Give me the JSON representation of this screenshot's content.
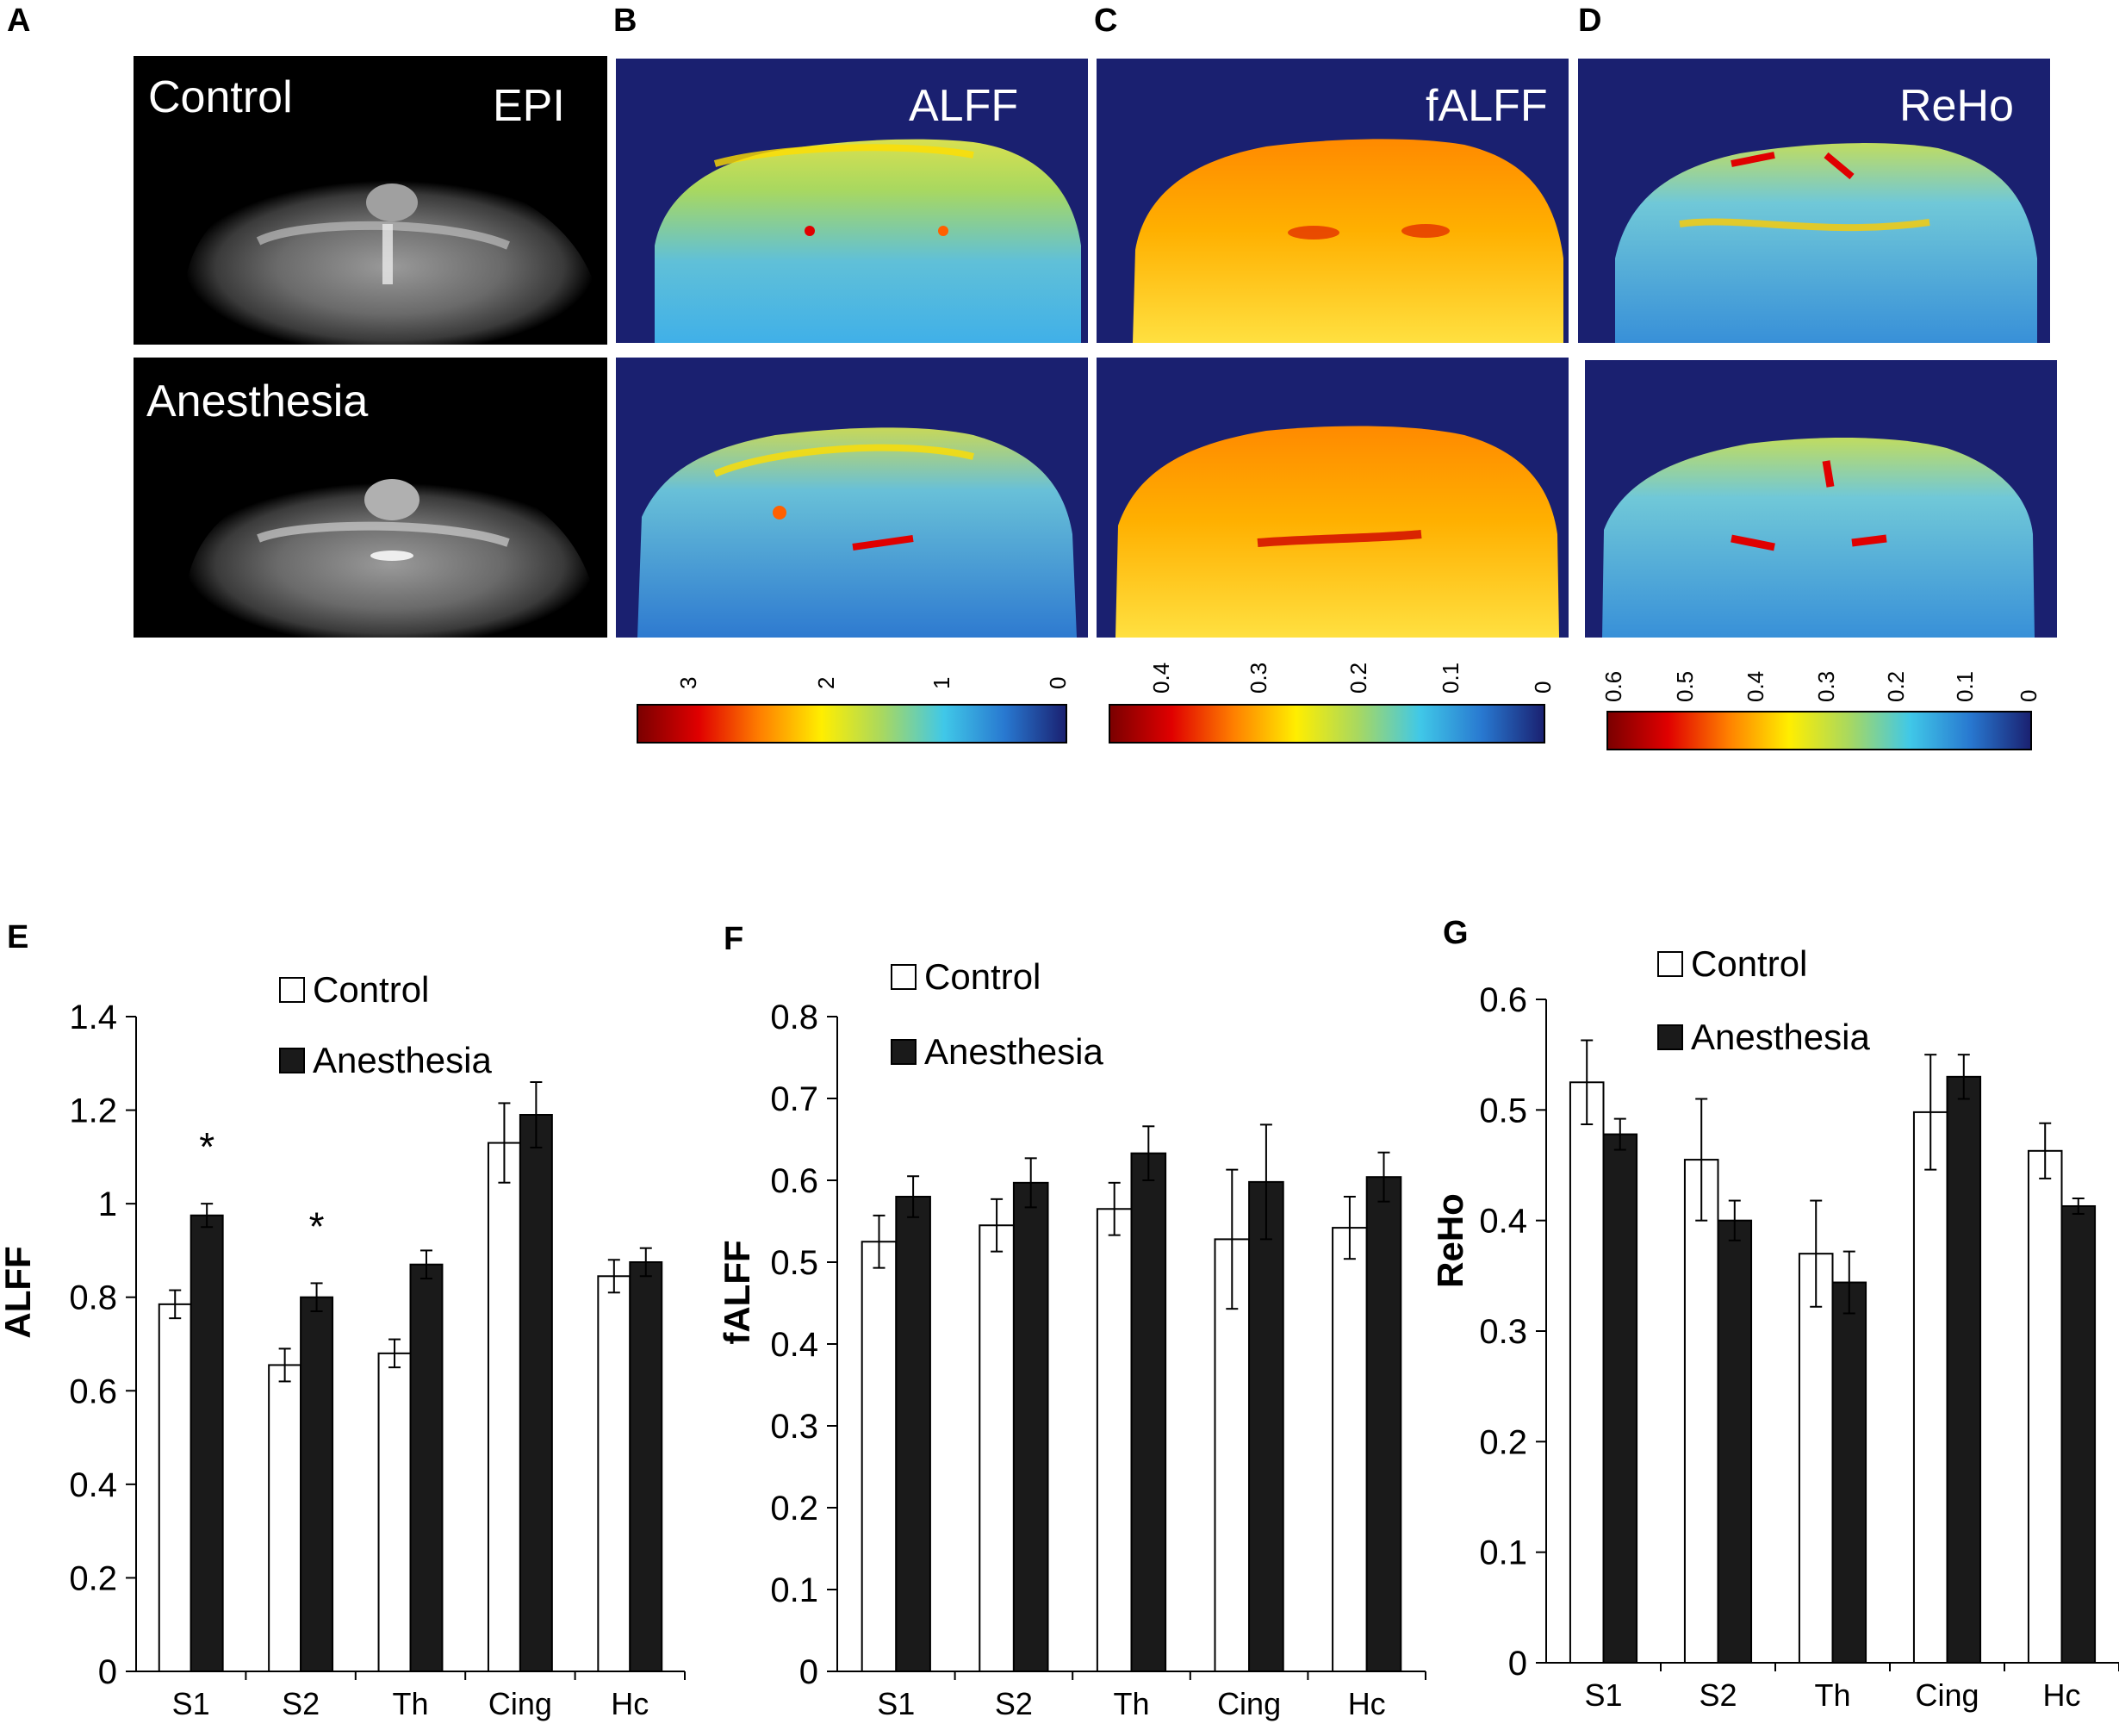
{
  "panel_labels": [
    "A",
    "B",
    "C",
    "D",
    "E",
    "F",
    "G"
  ],
  "images": {
    "row_labels": [
      "Control",
      "Anesthesia"
    ],
    "epi_label": "EPI",
    "map_labels": [
      "ALFF",
      "fALFF",
      "ReHo"
    ],
    "colors": {
      "background": "#1a2070",
      "colormap": [
        "#7a0000",
        "#e00000",
        "#ff8000",
        "#ffee00",
        "#a8d860",
        "#40c8e8",
        "#2878d0",
        "#1a2070"
      ]
    }
  },
  "colorbars": [
    {
      "name": "ALFF",
      "ticks": [
        "3",
        "2",
        "1",
        "0"
      ]
    },
    {
      "name": "fALFF",
      "ticks": [
        "0.4",
        "0.3",
        "0.2",
        "0.1",
        "0"
      ]
    },
    {
      "name": "ReHo",
      "ticks": [
        "0.6",
        "0.5",
        "0.4",
        "0.3",
        "0.2",
        "0.1",
        "0"
      ]
    }
  ],
  "chart_data": [
    {
      "type": "bar",
      "panel": "E",
      "ylabel": "ALFF",
      "xlabel": "",
      "categories": [
        "S1",
        "S2",
        "Th",
        "Cing",
        "Hc"
      ],
      "ylim": [
        0,
        1.4
      ],
      "yticks": [
        "0",
        "0.2",
        "0.4",
        "0.6",
        "0.8",
        "1",
        "1.2",
        "1.4"
      ],
      "series": [
        {
          "name": "Control",
          "color": "#ffffff",
          "values": [
            0.785,
            0.655,
            0.68,
            1.13,
            0.845
          ],
          "errors": [
            0.03,
            0.035,
            0.03,
            0.085,
            0.035
          ]
        },
        {
          "name": "Anesthesia",
          "color": "#1a1a1a",
          "values": [
            0.975,
            0.8,
            0.87,
            1.19,
            0.875
          ],
          "errors": [
            0.025,
            0.03,
            0.03,
            0.07,
            0.03
          ]
        }
      ],
      "annotations": [
        "*",
        "*"
      ],
      "legend": "top"
    },
    {
      "type": "bar",
      "panel": "F",
      "ylabel": "fALFF",
      "xlabel": "",
      "categories": [
        "S1",
        "S2",
        "Th",
        "Cing",
        "Hc"
      ],
      "ylim": [
        0,
        0.8
      ],
      "yticks": [
        "0",
        "0.1",
        "0.2",
        "0.3",
        "0.4",
        "0.5",
        "0.6",
        "0.7",
        "0.8"
      ],
      "series": [
        {
          "name": "Control",
          "color": "#ffffff",
          "values": [
            0.525,
            0.545,
            0.565,
            0.528,
            0.542
          ],
          "errors": [
            0.032,
            0.032,
            0.032,
            0.085,
            0.038
          ]
        },
        {
          "name": "Anesthesia",
          "color": "#1a1a1a",
          "values": [
            0.58,
            0.597,
            0.633,
            0.598,
            0.604
          ],
          "errors": [
            0.025,
            0.03,
            0.033,
            0.07,
            0.03
          ]
        }
      ],
      "legend": "top"
    },
    {
      "type": "bar",
      "panel": "G",
      "ylabel": "ReHo",
      "xlabel": "",
      "categories": [
        "S1",
        "S2",
        "Th",
        "Cing",
        "Hc"
      ],
      "ylim": [
        0,
        0.6
      ],
      "yticks": [
        "0",
        "0.1",
        "0.2",
        "0.3",
        "0.4",
        "0.5",
        "0.6"
      ],
      "series": [
        {
          "name": "Control",
          "color": "#ffffff",
          "values": [
            0.525,
            0.455,
            0.37,
            0.498,
            0.463
          ],
          "errors": [
            0.038,
            0.055,
            0.048,
            0.052,
            0.025
          ]
        },
        {
          "name": "Anesthesia",
          "color": "#1a1a1a",
          "values": [
            0.478,
            0.4,
            0.344,
            0.53,
            0.413
          ],
          "errors": [
            0.014,
            0.018,
            0.028,
            0.02,
            0.007
          ]
        }
      ],
      "legend": "top"
    }
  ]
}
